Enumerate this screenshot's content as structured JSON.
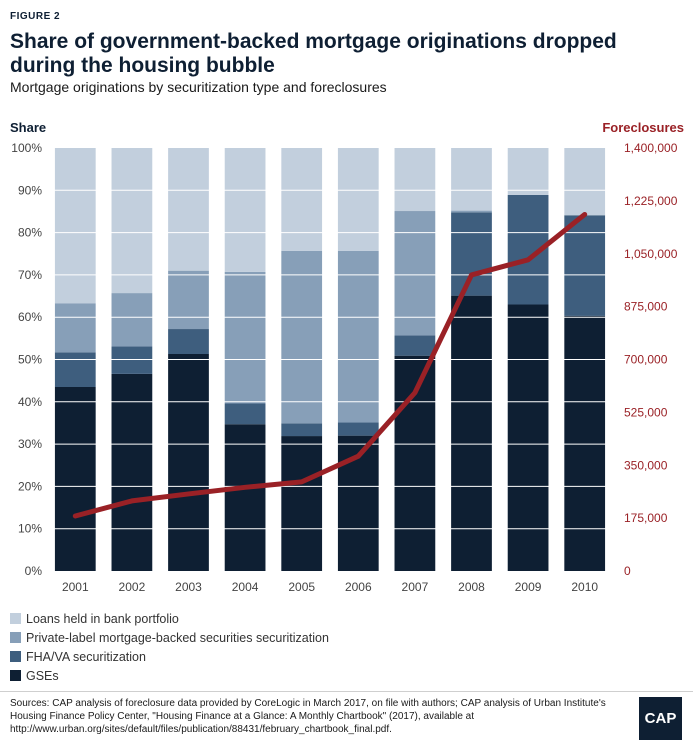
{
  "figure_label": "FIGURE 2",
  "title": "Share of government-backed mortgage originations dropped during the housing bubble",
  "subtitle": "Mortgage originations by securitization type and foreclosures",
  "colors": {
    "bank_portfolio": "#c2cfdd",
    "private_label": "#879fb8",
    "fha_va": "#3e5e7e",
    "gses": "#0e1f33",
    "foreclosures": "#9a2126",
    "axis_text": "#444444",
    "gridline": "#ffffff"
  },
  "legend": [
    {
      "label": "Loans held in bank portfolio",
      "color_key": "bank_portfolio"
    },
    {
      "label": "Private-label mortgage-backed securities securitization",
      "color_key": "private_label"
    },
    {
      "label": "FHA/VA securitization",
      "color_key": "fha_va"
    },
    {
      "label": "GSEs",
      "color_key": "gses"
    }
  ],
  "sources": "Sources: CAP analysis of foreclosure data provided by CoreLogic in March 2017, on file with authors; CAP analysis of Urban Institute's Housing Finance Policy Center, \"Housing Finance at a Glance: A Monthly Chartbook\" (2017), available at http://www.urban.org/sites/default/files/publication/88431/february_chartbook_final.pdf.",
  "logo_text": "CAP",
  "chart_data": {
    "type": "bar",
    "stacked": true,
    "categories": [
      "2001",
      "2002",
      "2003",
      "2004",
      "2005",
      "2006",
      "2007",
      "2008",
      "2009",
      "2010"
    ],
    "ylabel_left": "Share",
    "ylabel_right": "Foreclosures",
    "ylim_left": [
      0,
      100
    ],
    "ylim_right": [
      0,
      1400000
    ],
    "yticks_left": [
      "0%",
      "10%",
      "20%",
      "30%",
      "40%",
      "50%",
      "60%",
      "70%",
      "80%",
      "90%",
      "100%"
    ],
    "yticks_right": [
      "0",
      "175,000",
      "350,000",
      "525,000",
      "700,000",
      "875,000",
      "1,050,000",
      "1,225,000",
      "1,400,000"
    ],
    "series": [
      {
        "name": "GSEs",
        "color_key": "gses",
        "values": [
          43.5,
          46.6,
          51.3,
          34.7,
          31.9,
          32.0,
          50.9,
          65.1,
          63.0,
          60.3
        ]
      },
      {
        "name": "FHA/VA securitization",
        "color_key": "fha_va",
        "values": [
          8.2,
          6.5,
          5.9,
          4.9,
          3.0,
          3.1,
          4.8,
          19.7,
          25.9,
          23.8
        ]
      },
      {
        "name": "Private-label mortgage-backed securities securitization",
        "color_key": "private_label",
        "values": [
          11.6,
          12.6,
          13.8,
          31.1,
          40.8,
          40.6,
          29.4,
          0.4,
          0.0,
          0.0
        ]
      },
      {
        "name": "Loans held in bank portfolio",
        "color_key": "bank_portfolio",
        "values": [
          36.7,
          34.3,
          29.0,
          29.3,
          24.3,
          24.3,
          14.9,
          14.8,
          11.1,
          15.9
        ]
      }
    ],
    "line": {
      "name": "Foreclosures",
      "axis": "right",
      "color_key": "foreclosures",
      "values": [
        182000,
        232000,
        255000,
        277000,
        295000,
        380000,
        590000,
        980000,
        1030000,
        1180000
      ]
    }
  }
}
